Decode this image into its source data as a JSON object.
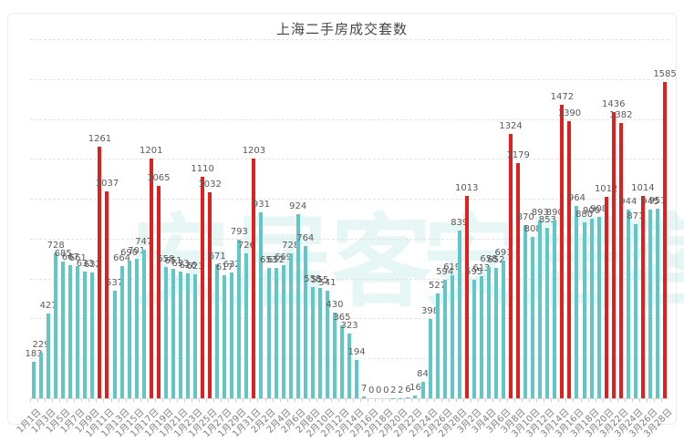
{
  "page": {
    "title": "上海二手房成交套数"
  },
  "watermark": {
    "text_left": "安居客",
    "text_right": "安居客"
  },
  "chart_data": {
    "type": "bar",
    "title": "上海二手房成交套数",
    "xlabel": "",
    "ylabel": "",
    "ylim": [
      0,
      1800
    ],
    "grid_step": 200,
    "grid_on": true,
    "x_tick_label_every": 2,
    "bar_color_normal": "#62c6c7",
    "bar_color_high": "#e01f1f",
    "high_value_threshold": 1000,
    "label_color": "#595959",
    "axis_label_color": "#7f7f7f",
    "categories": [
      "1月1日",
      "1月2日",
      "1月3日",
      "1月4日",
      "1月5日",
      "1月6日",
      "1月7日",
      "1月8日",
      "1月9日",
      "1月10日",
      "1月11日",
      "1月12日",
      "1月13日",
      "1月14日",
      "1月15日",
      "1月16日",
      "1月17日",
      "1月18日",
      "1月19日",
      "1月20日",
      "1月21日",
      "1月22日",
      "1月23日",
      "1月24日",
      "1月25日",
      "1月26日",
      "1月27日",
      "1月28日",
      "1月29日",
      "1月30日",
      "1月31日",
      "2月1日",
      "2月2日",
      "2月3日",
      "2月4日",
      "2月5日",
      "2月6日",
      "2月7日",
      "2月8日",
      "2月9日",
      "2月10日",
      "2月11日",
      "2月12日",
      "2月13日",
      "2月14日",
      "2月15日",
      "2月16日",
      "2月17日",
      "2月18日",
      "2月19日",
      "2月20日",
      "2月21日",
      "2月22日",
      "2月23日",
      "2月24日",
      "2月25日",
      "2月26日",
      "2月27日",
      "2月28日",
      "3月1日",
      "3月2日",
      "3月3日",
      "3月4日",
      "3月5日",
      "3月6日",
      "3月7日",
      "3月8日",
      "3月9日",
      "3月10日",
      "3月11日",
      "3月12日",
      "3月13日",
      "3月14日",
      "3月15日",
      "3月16日",
      "3月17日",
      "3月18日",
      "3月19日",
      "3月20日",
      "3月21日",
      "3月22日",
      "3月23日",
      "3月24日",
      "3月25日",
      "3月26日",
      "3月27日",
      "3月28日"
    ],
    "values": [
      183,
      229,
      427,
      728,
      685,
      667,
      661,
      633,
      632,
      1261,
      1037,
      537,
      664,
      690,
      701,
      747,
      1201,
      1065,
      658,
      651,
      633,
      626,
      623,
      1110,
      1032,
      671,
      617,
      632,
      793,
      726,
      1203,
      931,
      653,
      652,
      669,
      728,
      924,
      764,
      558,
      555,
      541,
      430,
      365,
      323,
      194,
      7,
      0,
      0,
      0,
      2,
      2,
      6,
      16,
      84,
      398,
      527,
      594,
      619,
      839,
      1013,
      595,
      613,
      658,
      652,
      691,
      1324,
      1179,
      870,
      808,
      893,
      853,
      890,
      1472,
      1390,
      964,
      880,
      900,
      908,
      1012,
      1436,
      1382,
      944,
      871,
      1014,
      945,
      951,
      1585
    ]
  }
}
